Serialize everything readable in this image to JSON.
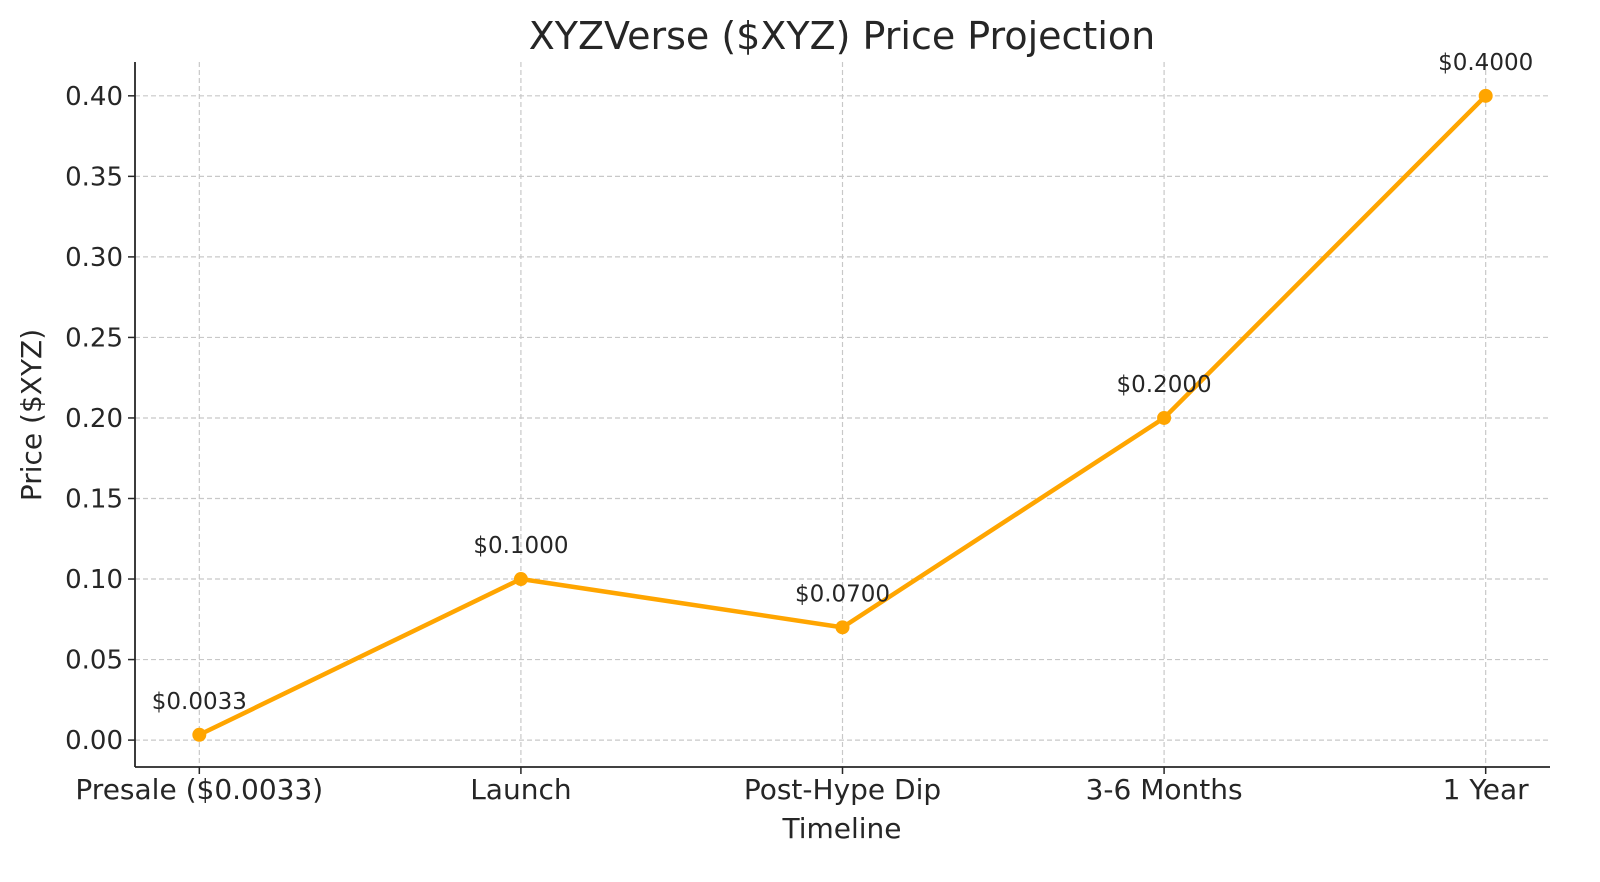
{
  "chart_data": {
    "type": "line",
    "title": "XYZVerse ($XYZ) Price Projection",
    "xlabel": "Timeline",
    "ylabel": "Price ($XYZ)",
    "categories": [
      "Presale ($0.0033)",
      "Launch",
      "Post-Hype Dip",
      "3-6 Months",
      "1 Year"
    ],
    "values": [
      0.0033,
      0.1,
      0.07,
      0.2,
      0.4
    ],
    "data_labels": [
      "$0.0033",
      "$0.1000",
      "$0.0700",
      "$0.2000",
      "$0.4000"
    ],
    "yticks": [
      "0.00",
      "0.05",
      "0.10",
      "0.15",
      "0.20",
      "0.25",
      "0.30",
      "0.35",
      "0.40"
    ],
    "ylim": [
      -0.0167,
      0.421
    ],
    "grid": true,
    "grid_style": "dashed",
    "line_color": "#FFA500",
    "marker": "circle"
  }
}
